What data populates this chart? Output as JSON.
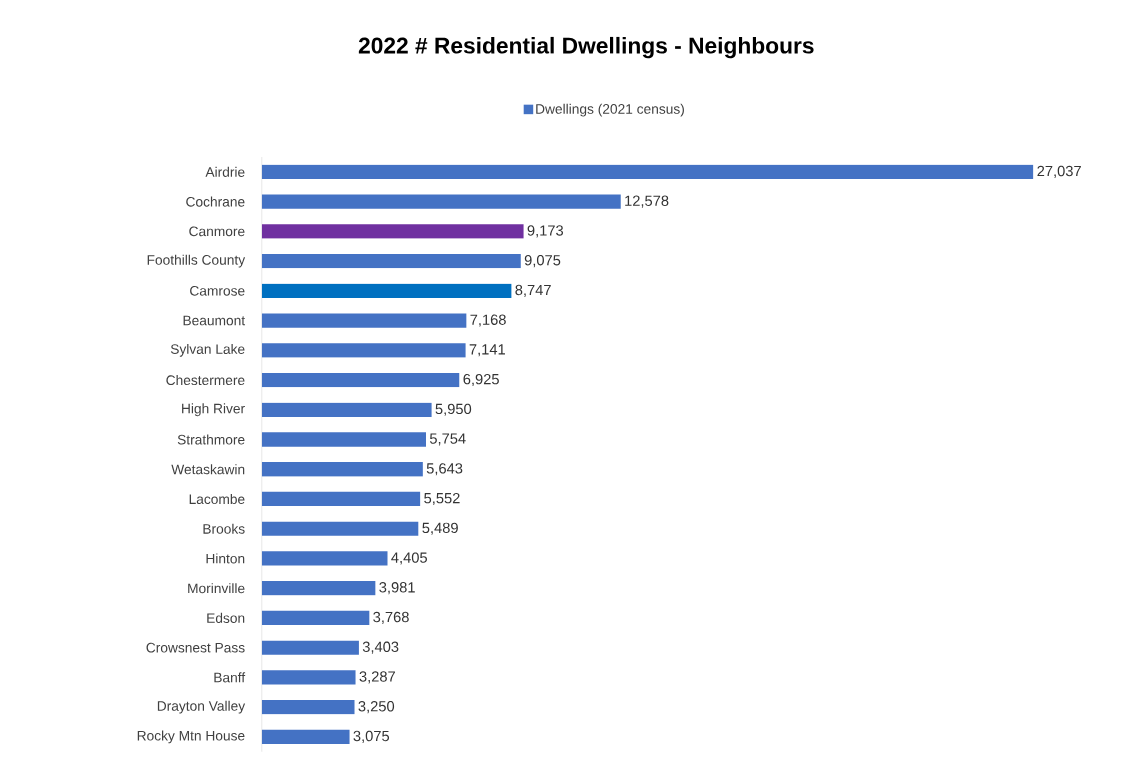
{
  "chart_data": {
    "type": "bar",
    "orientation": "horizontal",
    "title": "2022 # Residential Dwellings - Neighbours",
    "categories": [
      "Airdrie",
      "Cochrane",
      "Canmore",
      "Foothills County",
      "Camrose",
      "Beaumont",
      "Sylvan Lake",
      "Chestermere",
      "High River",
      "Strathmore",
      "Wetaskawin",
      "Lacombe",
      "Brooks",
      "Hinton",
      "Morinville",
      "Edson",
      "Crowsnest Pass",
      "Banff",
      "Drayton Valley",
      "Rocky Mtn House"
    ],
    "series": [
      {
        "name": "Dwellings (2021 census)",
        "color": "#4472c4",
        "colors": [
          "#4472c4",
          "#4472c4",
          "#7030a0",
          "#4472c4",
          "#0070c0",
          "#4472c4",
          "#4472c4",
          "#4472c4",
          "#4472c4",
          "#4472c4",
          "#4472c4",
          "#4472c4",
          "#4472c4",
          "#4472c4",
          "#4472c4",
          "#4472c4",
          "#4472c4",
          "#4472c4",
          "#4472c4",
          "#4472c4"
        ],
        "values": [
          27037,
          12578,
          9173,
          9075,
          8747,
          7168,
          7141,
          6925,
          5950,
          5754,
          5643,
          5552,
          5489,
          4405,
          3981,
          3768,
          3403,
          3287,
          3250,
          3075
        ],
        "value_labels": [
          "27,037",
          "12,578",
          "9,173",
          "9,075",
          "8,747",
          "7,168",
          "7,141",
          "6,925",
          "5,950",
          "5,754",
          "5,643",
          "5,552",
          "5,489",
          "4,405",
          "3,981",
          "3,768",
          "3,403",
          "3,287",
          "3,250",
          "3,075"
        ]
      }
    ],
    "legend": "top",
    "tick_labels": "y"
  }
}
